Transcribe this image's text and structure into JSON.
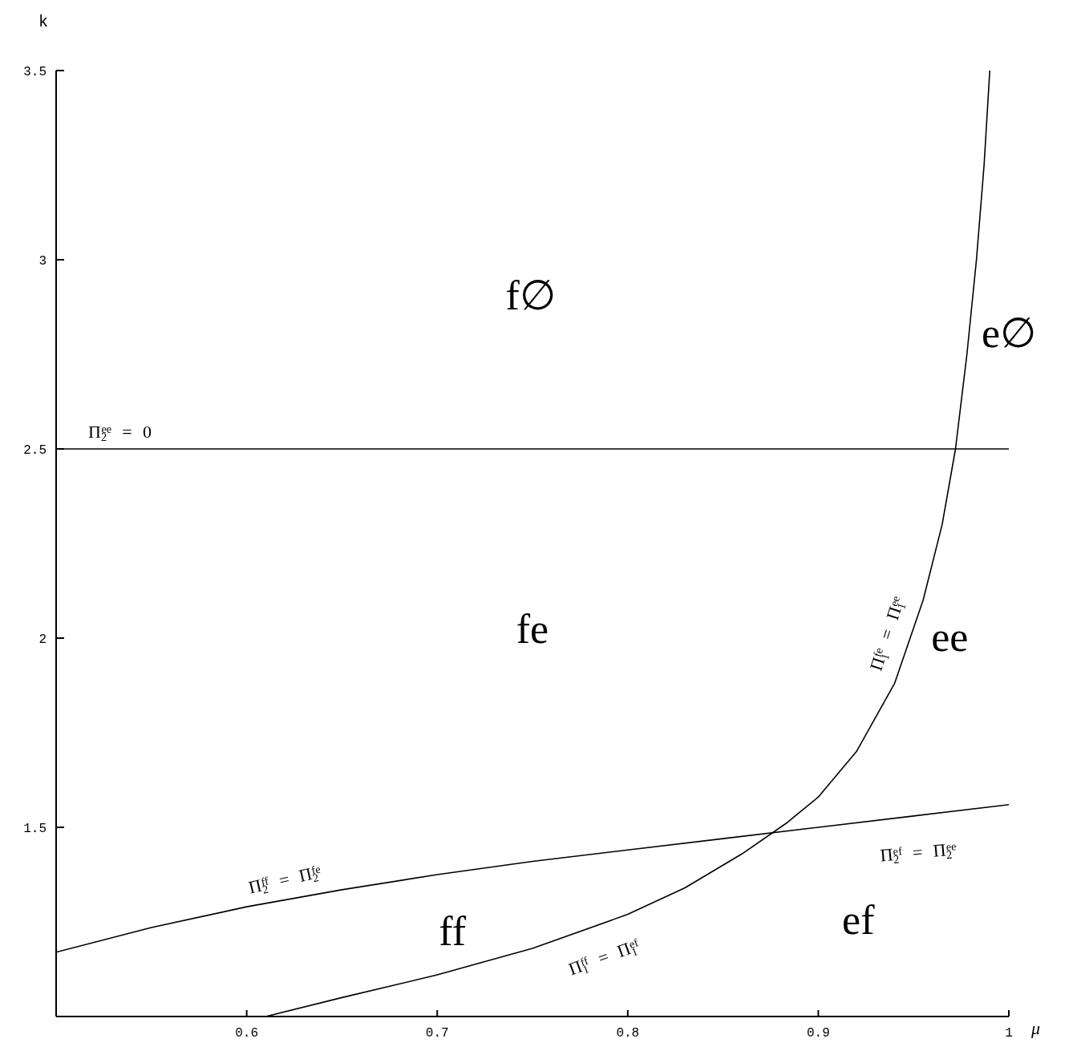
{
  "chart_data": {
    "type": "line",
    "xlabel": "μ",
    "ylabel": "k",
    "xlim": [
      0.5,
      1
    ],
    "xticks": [
      0.6,
      0.7,
      0.8,
      0.9,
      1
    ],
    "ylim": [
      1,
      3.5
    ],
    "yticks": [
      1.5,
      2,
      2.5,
      3,
      3.5
    ],
    "marker": "none",
    "line_style": "solid",
    "series": [
      {
        "color": "#000000",
        "x": [
          0.5,
          0.55,
          0.6,
          0.65,
          0.7,
          0.75,
          0.8,
          0.85,
          0.9,
          0.95,
          1
        ],
        "values": [
          1.17,
          1.235,
          1.29,
          1.335,
          1.375,
          1.41,
          1.44,
          1.47,
          1.5,
          1.53,
          1.56
        ]
      },
      {
        "color": "#000000",
        "x": [
          0.61,
          0.65,
          0.7,
          0.75,
          0.8,
          0.83,
          0.86,
          0.883,
          0.9,
          0.92,
          0.94,
          0.955,
          0.965,
          0.972,
          0.978,
          0.983,
          0.987,
          0.99
        ],
        "values": [
          1.0,
          1.05,
          1.11,
          1.18,
          1.27,
          1.34,
          1.43,
          1.51,
          1.58,
          1.7,
          1.88,
          2.1,
          2.3,
          2.5,
          2.75,
          3.0,
          3.25,
          3.5
        ]
      }
    ],
    "ref_lines": [
      {
        "axis": "y",
        "value": 2.5,
        "label": "Π$_{2}$$^{ee}$ = 0",
        "color": "#000000"
      }
    ],
    "annotations": [
      "f∅",
      "e∅",
      "fe",
      "ee",
      "ff",
      "ef",
      "Π$_{1}$$^{fe}$ = Π$_{1}$$^{ee}$",
      "Π$_{2}$$^{ef}$ = Π$_{2}$$^{ee}$",
      "Π$_{2}$$^{ff}$ = Π$_{2}$$^{fe}$",
      "Π$_{1}$$^{ff}$ = Π$_{1}$$^{ef}$"
    ]
  }
}
